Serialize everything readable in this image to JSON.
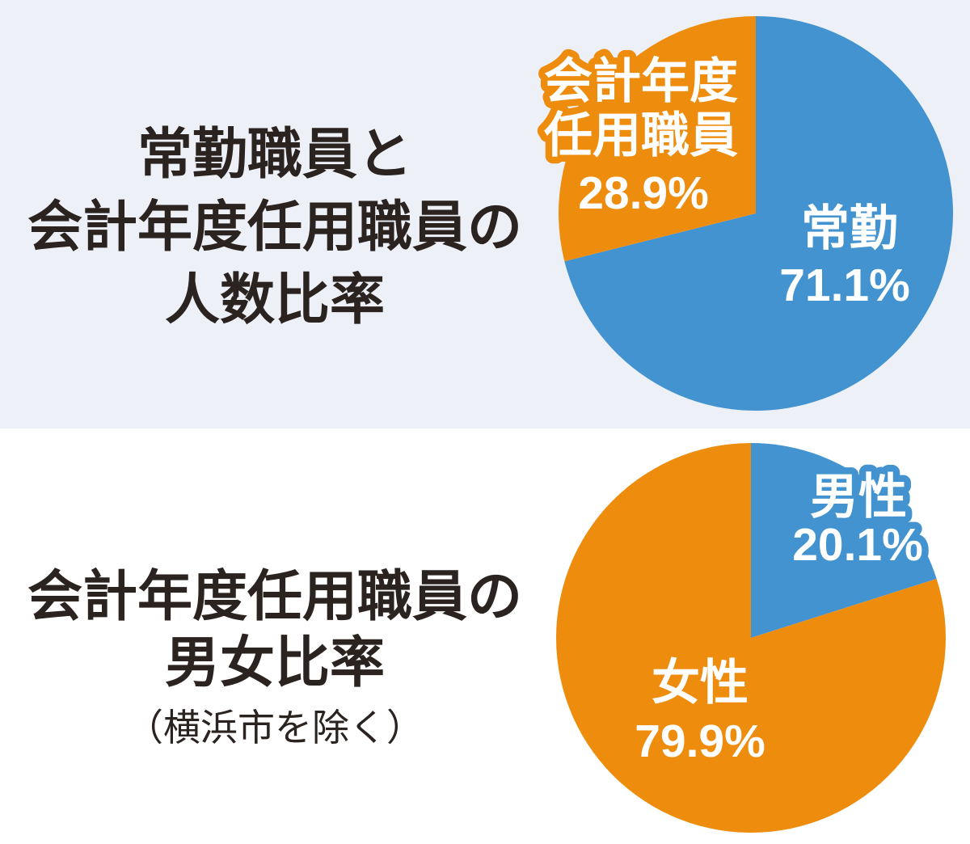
{
  "colors": {
    "background_top": "#edf1f7",
    "background_bottom": "#ffffff",
    "blue": "#4293d0",
    "orange": "#ee8c0e",
    "title_text": "#2a2320",
    "label_text": "#ffffff"
  },
  "sections": {
    "top": {
      "title_lines": [
        "常勤職員と",
        "会計年度任用職員の",
        "人数比率"
      ]
    },
    "bottom": {
      "title_lines": [
        "会計年度任用職員の",
        "男女比率"
      ],
      "note": "（横浜市を除く）"
    }
  },
  "chart_data": [
    {
      "type": "pie",
      "title": "常勤職員と会計年度任用職員の人数比率",
      "start_angle_deg": 0,
      "direction": "clockwise",
      "slices": [
        {
          "label": "常勤",
          "value": 71.1,
          "pct_text": "71.1%",
          "color": "#4293d0"
        },
        {
          "label": "会計年度任用職員",
          "label_lines": [
            "会計年度",
            "任用職員"
          ],
          "value": 28.9,
          "pct_text": "28.9%",
          "color": "#ee8c0e"
        }
      ]
    },
    {
      "type": "pie",
      "title": "会計年度任用職員の男女比率（横浜市を除く）",
      "start_angle_deg": 0,
      "direction": "clockwise",
      "slices": [
        {
          "label": "男性",
          "value": 20.1,
          "pct_text": "20.1%",
          "color": "#4293d0"
        },
        {
          "label": "女性",
          "value": 79.9,
          "pct_text": "79.9%",
          "color": "#ee8c0e"
        }
      ]
    }
  ]
}
